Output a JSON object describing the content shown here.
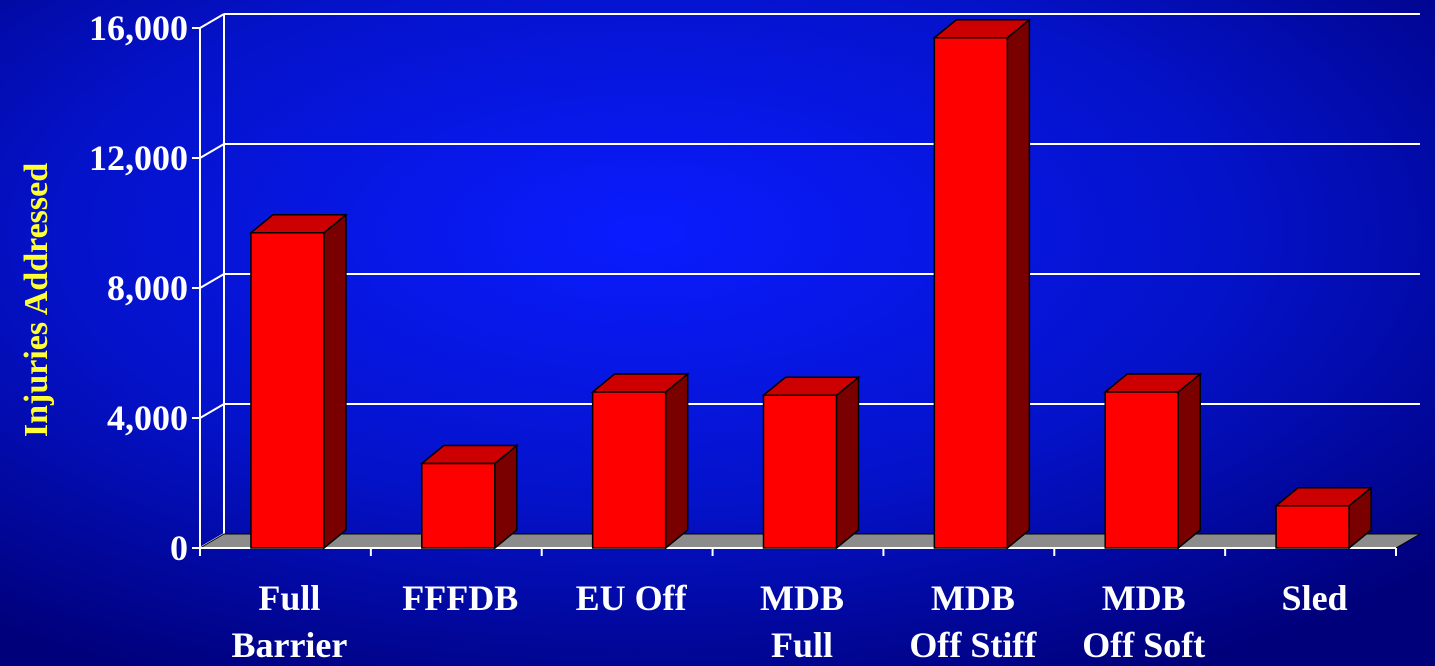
{
  "chart_data": {
    "type": "bar",
    "title": "",
    "xlabel": "",
    "ylabel": "Injuries Addressed",
    "categories": [
      [
        "Full",
        "Barrier"
      ],
      [
        "FFFDB"
      ],
      [
        "EU Off"
      ],
      [
        "MDB",
        "Full"
      ],
      [
        "MDB",
        "Off Stiff"
      ],
      [
        "MDB",
        "Off Soft"
      ],
      [
        "Sled"
      ]
    ],
    "values": [
      9700,
      2600,
      4800,
      4700,
      15700,
      4800,
      1300
    ],
    "ylim": [
      0,
      16000
    ],
    "yticks": [
      0,
      4000,
      8000,
      12000,
      16000
    ],
    "ytick_labels": [
      "0",
      "4,000",
      "8,000",
      "12,000",
      "16,000"
    ],
    "grid": true,
    "legend": "none",
    "style": "3d-column",
    "colors": {
      "background_outer": "#00007a",
      "background_plot_center": "#0a1cff",
      "bar_front": "#ff0000",
      "bar_top": "#cc0000",
      "bar_side": "#7a0000",
      "floor": "#8c8c8c",
      "gridline": "#ffffff",
      "tick_text": "#ffffff",
      "ylabel_text": "#ffff33"
    }
  }
}
